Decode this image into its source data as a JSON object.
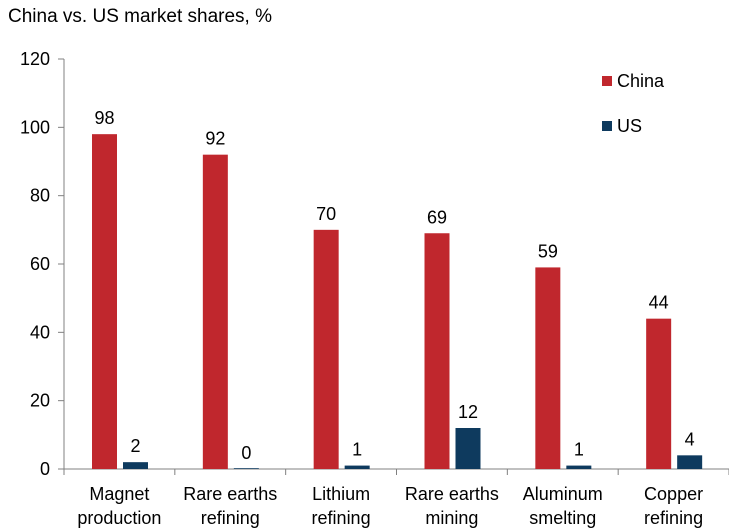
{
  "title": "China vs. US market shares, %",
  "chart_data": {
    "type": "bar",
    "title": "China vs. US market shares, %",
    "categories": [
      [
        "Magnet",
        "production"
      ],
      [
        "Rare earths",
        "refining"
      ],
      [
        "Lithium",
        "refining"
      ],
      [
        "Rare earths",
        "mining"
      ],
      [
        "Aluminum",
        "smelting"
      ],
      [
        "Copper",
        "refining"
      ]
    ],
    "series": [
      {
        "name": "China",
        "color": "#c0272d",
        "values": [
          98,
          92,
          70,
          69,
          59,
          44
        ]
      },
      {
        "name": "US",
        "color": "#0e3a5e",
        "values": [
          2,
          0,
          1,
          12,
          1,
          4
        ]
      }
    ],
    "ylim": [
      0,
      120
    ],
    "yticks": [
      0,
      20,
      40,
      60,
      80,
      100,
      120
    ],
    "grid": false,
    "legend_position": "top-right",
    "xlabel": "",
    "ylabel": ""
  }
}
